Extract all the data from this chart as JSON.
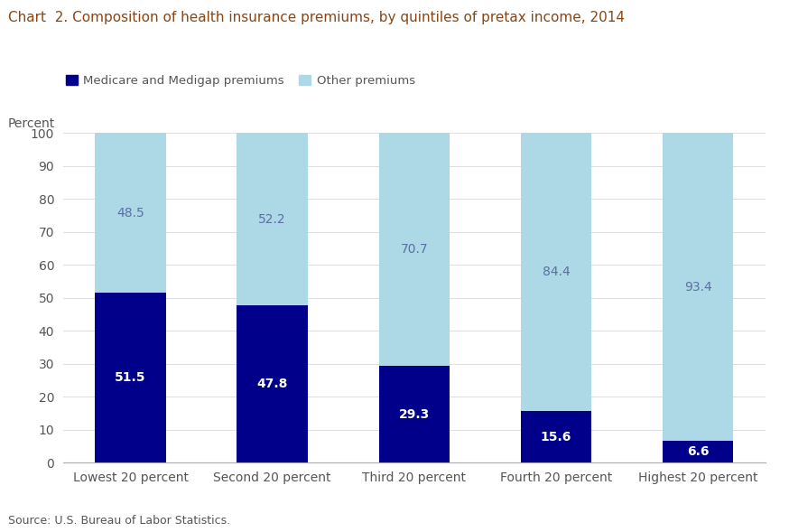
{
  "title": "Chart  2. Composition of health insurance premiums, by quintiles of pretax income, 2014",
  "percent_label": "Percent",
  "source": "Source: U.S. Bureau of Labor Statistics.",
  "categories": [
    "Lowest 20 percent",
    "Second 20 percent",
    "Third 20 percent",
    "Fourth 20 percent",
    "Highest 20 percent"
  ],
  "medicare_values": [
    51.5,
    47.8,
    29.3,
    15.6,
    6.6
  ],
  "other_values": [
    48.5,
    52.2,
    70.7,
    84.4,
    93.4
  ],
  "medicare_color": "#00008B",
  "other_color": "#ADD8E6",
  "title_color": "#8B4513",
  "tick_color": "#555555",
  "legend_label_medicare": "Medicare and Medigap premiums",
  "legend_label_other": "Other premiums",
  "other_text_color": "#5B6FA6",
  "ylim": [
    0,
    100
  ],
  "yticks": [
    0,
    10,
    20,
    30,
    40,
    50,
    60,
    70,
    80,
    90,
    100
  ],
  "bar_width": 0.5,
  "figsize": [
    8.74,
    5.89
  ],
  "dpi": 100
}
